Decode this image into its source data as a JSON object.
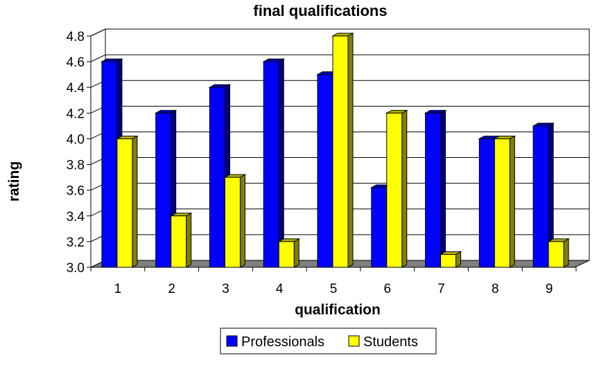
{
  "chart_data": {
    "type": "bar",
    "title": "final qualifications",
    "xlabel": "qualification",
    "ylabel": "rating",
    "categories": [
      "1",
      "2",
      "3",
      "4",
      "5",
      "6",
      "7",
      "8",
      "9"
    ],
    "series": [
      {
        "name": "Professionals",
        "color": "#0000ff",
        "values": [
          4.6,
          4.2,
          4.4,
          4.6,
          4.5,
          3.62,
          4.2,
          4.0,
          4.1
        ]
      },
      {
        "name": "Students",
        "color": "#ffff00",
        "values": [
          4.0,
          3.4,
          3.7,
          3.2,
          4.8,
          4.2,
          3.1,
          4.0,
          3.2
        ]
      }
    ],
    "ylim": [
      3.0,
      4.8
    ],
    "yticks": [
      "3.0",
      "3.2",
      "3.4",
      "3.6",
      "3.8",
      "4.0",
      "4.2",
      "4.4",
      "4.6",
      "4.8"
    ],
    "grid": true,
    "legend": "bottom-center",
    "style": "3d-clustered-column"
  }
}
